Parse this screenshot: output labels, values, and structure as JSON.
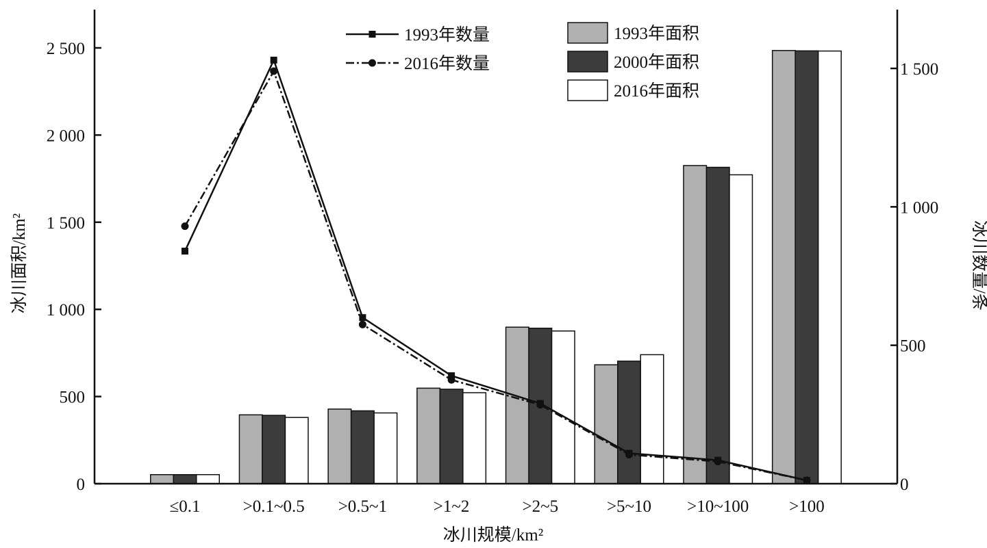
{
  "chart_data": {
    "type": "bar",
    "categories": [
      "≤0.1",
      ">0.1~0.5",
      ">0.5~1",
      ">1~2",
      ">2~5",
      ">5~10",
      ">10~100",
      ">100"
    ],
    "xlabel": "冰川规模/km²",
    "ylabel": "冰川面积/km²",
    "y2label": "冰川数量/条",
    "ylim": [
      0,
      2500
    ],
    "y2lim": [
      0,
      1500
    ],
    "yticks": [
      0,
      500,
      1000,
      1500,
      2000,
      2500
    ],
    "ytick_labels": [
      "0",
      "500",
      "1 000",
      "1 500",
      "2 000",
      "2 500"
    ],
    "y2ticks": [
      0,
      500,
      1000,
      1500
    ],
    "y2tick_labels": [
      "0",
      "500",
      "1 000",
      "1 500"
    ],
    "series": [
      {
        "name": "1993年面积",
        "kind": "bar",
        "axis": "left",
        "color": "#b0b0b0",
        "values": [
          52,
          395,
          428,
          548,
          898,
          682,
          1825,
          2485
        ]
      },
      {
        "name": "2000年面积",
        "kind": "bar",
        "axis": "left",
        "color": "#3c3c3c",
        "values": [
          52,
          392,
          418,
          542,
          892,
          703,
          1815,
          2483
        ]
      },
      {
        "name": "2016年面积",
        "kind": "bar",
        "axis": "left",
        "color": "#ffffff",
        "values": [
          52,
          380,
          406,
          522,
          876,
          740,
          1772,
          2482
        ]
      },
      {
        "name": "1993年数量",
        "kind": "line",
        "axis": "right",
        "marker": "square",
        "dash": "solid",
        "values": [
          840,
          1530,
          600,
          390,
          290,
          110,
          85,
          12
        ]
      },
      {
        "name": "2016年数量",
        "kind": "line",
        "axis": "right",
        "marker": "circle",
        "dash": "dashdot",
        "values": [
          930,
          1490,
          575,
          375,
          285,
          105,
          80,
          12
        ]
      }
    ],
    "legend": {
      "position": "top-center"
    },
    "grid": false
  }
}
